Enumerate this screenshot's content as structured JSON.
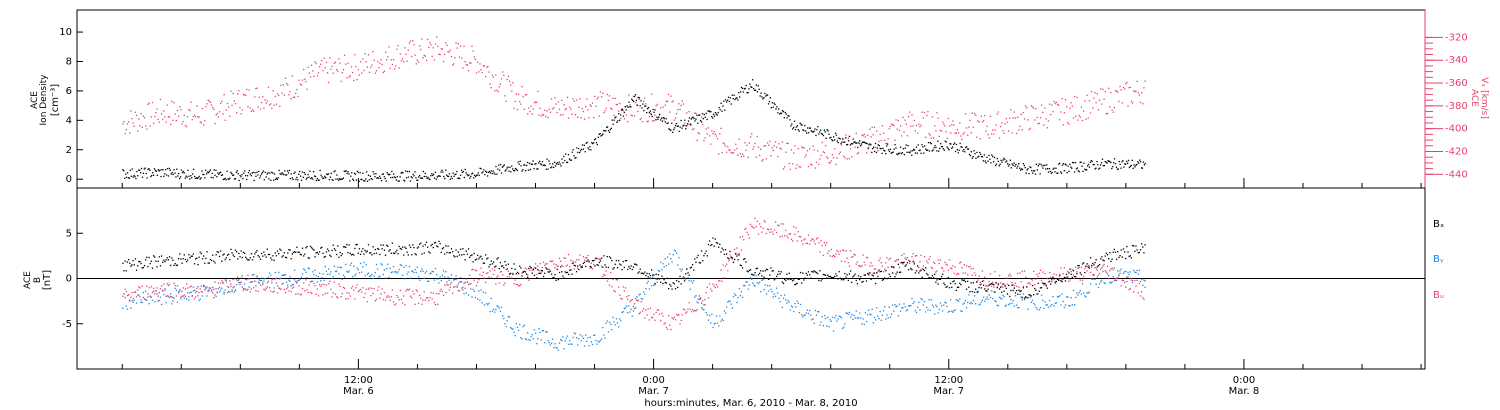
{
  "chart_data": [
    {
      "type": "scatter",
      "panel": "ion-density-velocity",
      "ylabel_lines": [
        "ACE",
        "Ion Density",
        "[cm⁻³]"
      ],
      "y2label_lines": [
        "ACE",
        "Vₓ [km/s]"
      ],
      "yticks": [
        0,
        2,
        4,
        6,
        8,
        10
      ],
      "ylim": [
        -0.6,
        11.5
      ],
      "y2ticks": [
        -320,
        -340,
        -360,
        -380,
        -400,
        -420,
        -440
      ],
      "y2lim": [
        -452,
        -296
      ],
      "colors": {
        "density": "#000000",
        "velocity": "#e8436c"
      },
      "series": [
        {
          "name": "",
          "axis": "left",
          "color": "#000000",
          "x_hours": [
            0,
            2,
            4,
            6,
            8,
            10,
            12,
            14,
            16,
            18,
            20,
            22,
            24,
            26,
            28,
            30,
            32,
            34,
            36,
            38,
            40,
            42,
            44,
            46,
            48,
            50,
            52
          ],
          "values": [
            0.4,
            0.5,
            0.35,
            0.3,
            0.3,
            0.3,
            0.25,
            0.25,
            0.3,
            0.4,
            0.9,
            1.1,
            2.5,
            5.5,
            3.5,
            4.5,
            6.5,
            3.8,
            3.0,
            2.2,
            2.0,
            2.4,
            1.4,
            0.7,
            0.8,
            1.1,
            1.0
          ]
        },
        {
          "name": "",
          "axis": "right",
          "color": "#e8436c",
          "x_hours": [
            0,
            2,
            4,
            6,
            8,
            10,
            12,
            14,
            16,
            18,
            20,
            22,
            24,
            26,
            28,
            30,
            32,
            34,
            36,
            38,
            40,
            42,
            44,
            46,
            48,
            50,
            52
          ],
          "values": [
            -395,
            -385,
            -388,
            -375,
            -368,
            -350,
            -345,
            -335,
            -330,
            -340,
            -372,
            -382,
            -378,
            -382,
            -380,
            -410,
            -415,
            -425,
            -420,
            -410,
            -395,
            -397,
            -398,
            -390,
            -384,
            -375,
            -365
          ]
        }
      ]
    },
    {
      "type": "scatter",
      "panel": "magnetic-field",
      "ylabel_lines": [
        "ACE",
        "B",
        "[nT]"
      ],
      "yticks": [
        -5,
        0,
        5
      ],
      "ylim": [
        -10,
        10
      ],
      "legend_position": "right",
      "series": [
        {
          "name": "Bₓ",
          "color": "#000000",
          "x_hours": [
            0,
            2,
            4,
            6,
            8,
            10,
            12,
            14,
            16,
            18,
            20,
            22,
            24,
            26,
            28,
            30,
            32,
            34,
            36,
            38,
            40,
            42,
            44,
            46,
            48,
            50,
            52
          ],
          "values": [
            1.5,
            2.0,
            2.3,
            2.7,
            2.8,
            3.0,
            3.2,
            3.3,
            3.5,
            2.5,
            1.0,
            0.5,
            2.0,
            1.5,
            -1.0,
            4.0,
            1.0,
            0.0,
            0.5,
            0.0,
            1.5,
            -0.5,
            -1.0,
            -1.5,
            0.5,
            2.5,
            3.3
          ]
        },
        {
          "name": "Bᵧ",
          "color": "#1e88e5",
          "x_hours": [
            0,
            2,
            4,
            6,
            8,
            10,
            12,
            14,
            16,
            18,
            20,
            22,
            24,
            26,
            28,
            30,
            32,
            34,
            36,
            38,
            40,
            42,
            44,
            46,
            48,
            50,
            52
          ],
          "values": [
            -2.5,
            -2.0,
            -1.5,
            -0.5,
            0.0,
            0.5,
            1.0,
            0.8,
            0.5,
            -1.5,
            -5.5,
            -7.0,
            -6.5,
            -3.0,
            3.0,
            -5.0,
            0.0,
            -3.0,
            -5.0,
            -4.0,
            -3.0,
            -3.0,
            -2.0,
            -2.5,
            -2.5,
            0.5,
            0.0
          ]
        },
        {
          "name": "Bᵤ",
          "color": "#e8436c",
          "x_hours": [
            0,
            2,
            4,
            6,
            8,
            10,
            12,
            14,
            16,
            18,
            20,
            22,
            24,
            26,
            28,
            30,
            32,
            34,
            36,
            38,
            40,
            42,
            44,
            46,
            48,
            50,
            52
          ],
          "values": [
            -2.0,
            -1.0,
            -1.5,
            -0.5,
            -0.8,
            -1.0,
            -1.5,
            -2.0,
            -2.0,
            0.5,
            0.0,
            2.0,
            2.0,
            -3.0,
            -5.0,
            -1.0,
            6.0,
            5.0,
            3.0,
            1.5,
            2.0,
            1.5,
            0.0,
            0.0,
            0.5,
            1.0,
            -1.5
          ]
        }
      ]
    }
  ],
  "x_axis": {
    "range_hours": [
      -2.3,
      66.2
    ],
    "tick_labels": [
      {
        "hour": 12,
        "time": "12:00",
        "date": "Mar. 6"
      },
      {
        "hour": 27,
        "time": "0:00",
        "date": "Mar. 7"
      },
      {
        "hour": 42,
        "time": "12:00",
        "date": "Mar. 7"
      },
      {
        "hour": 57,
        "time": "0:00",
        "date": "Mar. 8"
      }
    ],
    "xlabel": "hours:minutes, Mar.  6, 2010 - Mar.  8, 2010"
  }
}
